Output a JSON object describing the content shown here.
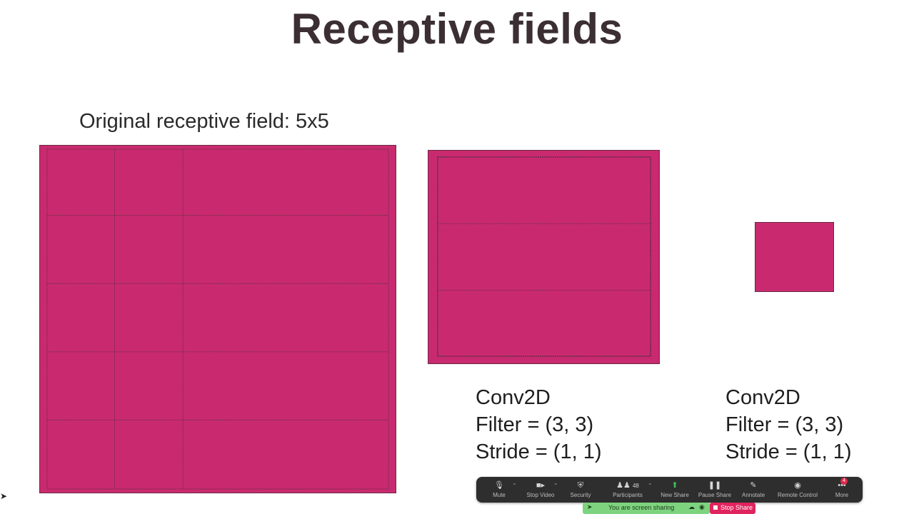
{
  "slide": {
    "title": "Receptive fields",
    "original_label": "Original receptive field: 5x5",
    "fill_color": "#c92a6f",
    "grid_color": "#7a2a4e"
  },
  "conv_blocks": [
    {
      "name": "Conv2D",
      "filter": "Filter = (3, 3)",
      "stride": "Stride = (1, 1)"
    },
    {
      "name": "Conv2D",
      "filter": "Filter = (3, 3)",
      "stride": "Stride = (1, 1)"
    }
  ],
  "zoom_toolbar": {
    "items": [
      {
        "label": "Mute",
        "icon": "microphone-icon"
      },
      {
        "label": "Stop Video",
        "icon": "video-camera-icon"
      },
      {
        "label": "Security",
        "icon": "shield-icon"
      },
      {
        "label": "Participants",
        "icon": "participants-icon",
        "count": "48"
      },
      {
        "label": "New Share",
        "icon": "share-screen-icon"
      },
      {
        "label": "Pause Share",
        "icon": "pause-icon"
      },
      {
        "label": "Annotate",
        "icon": "pencil-icon"
      },
      {
        "label": "Remote Control",
        "icon": "mouse-icon"
      },
      {
        "label": "More",
        "icon": "more-icon",
        "badge": "4"
      }
    ],
    "sharing_banner": "You are screen sharing",
    "stop_share_label": "Stop Share"
  }
}
